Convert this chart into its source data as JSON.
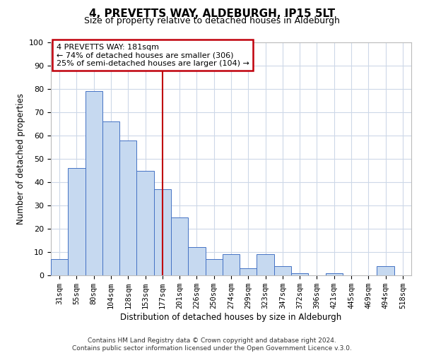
{
  "title": "4, PREVETTS WAY, ALDEBURGH, IP15 5LT",
  "subtitle": "Size of property relative to detached houses in Aldeburgh",
  "xlabel": "Distribution of detached houses by size in Aldeburgh",
  "ylabel": "Number of detached properties",
  "bar_labels": [
    "31sqm",
    "55sqm",
    "80sqm",
    "104sqm",
    "128sqm",
    "153sqm",
    "177sqm",
    "201sqm",
    "226sqm",
    "250sqm",
    "274sqm",
    "299sqm",
    "323sqm",
    "347sqm",
    "372sqm",
    "396sqm",
    "421sqm",
    "445sqm",
    "469sqm",
    "494sqm",
    "518sqm"
  ],
  "bar_heights": [
    7,
    46,
    79,
    66,
    58,
    45,
    37,
    25,
    12,
    7,
    9,
    3,
    9,
    4,
    1,
    0,
    1,
    0,
    0,
    4,
    0
  ],
  "bar_color": "#c6d9f0",
  "bar_edge_color": "#4472c4",
  "vline_x": 6,
  "vline_color": "#c0000b",
  "annotation_title": "4 PREVETTS WAY: 181sqm",
  "annotation_line1": "← 74% of detached houses are smaller (306)",
  "annotation_line2": "25% of semi-detached houses are larger (104) →",
  "annotation_box_color": "#ffffff",
  "annotation_box_edge": "#c0000b",
  "ylim": [
    0,
    100
  ],
  "yticks": [
    0,
    10,
    20,
    30,
    40,
    50,
    60,
    70,
    80,
    90,
    100
  ],
  "footer1": "Contains HM Land Registry data © Crown copyright and database right 2024.",
  "footer2": "Contains public sector information licensed under the Open Government Licence v.3.0.",
  "background_color": "#ffffff",
  "grid_color": "#cdd8e8",
  "title_fontsize": 11,
  "subtitle_fontsize": 9,
  "axis_label_fontsize": 8.5,
  "tick_fontsize": 7.5,
  "footer_fontsize": 6.5
}
